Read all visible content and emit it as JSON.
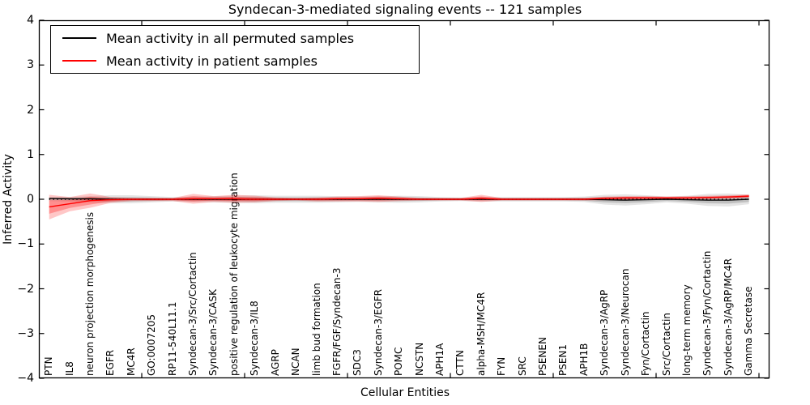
{
  "figure": {
    "title": "Syndecan-3-mediated signaling events -- 121 samples",
    "xlabel": "Cellular Entities",
    "ylabel": "Inferred Activity"
  },
  "legend": {
    "items": [
      {
        "name": "permuted-mean",
        "label": "Mean activity in all permuted samples",
        "color": "#000000"
      },
      {
        "name": "patient-mean",
        "label": "Mean activity in patient samples",
        "color": "#ff0000"
      }
    ]
  },
  "chart_data": {
    "type": "line",
    "title": "Syndecan-3-mediated signaling events -- 121 samples",
    "xlabel": "Cellular Entities",
    "ylabel": "Inferred Activity",
    "ylim": [
      -4,
      4
    ],
    "yticks": [
      4,
      3,
      2,
      1,
      0,
      -1,
      -2,
      -3,
      -4
    ],
    "ytick_labels": [
      "4",
      "3",
      "2",
      "1",
      "0",
      "−1",
      "−2",
      "−3",
      "−4"
    ],
    "grid": false,
    "legend_position": "upper left",
    "zero_line": 0,
    "categories": [
      "PTN",
      "IL8",
      "neuron projection morphogenesis",
      "EGFR",
      "MC4R",
      "GO:0007205",
      "RP11-540L11.1",
      "Syndecan-3/Src/Cortactin",
      "Syndecan-3/CASK",
      "positive regulation of leukocyte migration",
      "Syndecan-3/IL8",
      "AGRP",
      "NCAN",
      "limb bud formation",
      "FGFR/FGF/Syndecan-3",
      "SDC3",
      "Syndecan-3/EGFR",
      "POMC",
      "NCSTN",
      "APH1A",
      "CTTN",
      "alpha-MSH/MC4R",
      "FYN",
      "SRC",
      "PSENEN",
      "PSEN1",
      "APH1B",
      "Syndecan-3/AgRP",
      "Syndecan-3/Neurocan",
      "Fyn/Cortactin",
      "Src/Cortactin",
      "long-term memory",
      "Syndecan-3/Fyn/Cortactin",
      "Syndecan-3/AgRP/MC4R",
      "Gamma Secretase"
    ],
    "series": [
      {
        "name": "Mean activity in all permuted samples",
        "color": "#000000",
        "values": [
          0.02,
          0.01,
          0.01,
          0.0,
          0.0,
          0.0,
          0.0,
          0.0,
          0.0,
          0.0,
          0.0,
          0.0,
          0.0,
          0.0,
          0.0,
          0.0,
          0.0,
          0.0,
          0.0,
          0.0,
          0.0,
          0.0,
          0.0,
          0.0,
          0.0,
          0.0,
          0.0,
          -0.01,
          -0.02,
          -0.01,
          0.0,
          -0.01,
          -0.02,
          -0.02,
          0.0
        ]
      },
      {
        "name": "Mean activity in patient samples",
        "color": "#ff0000",
        "values": [
          -0.17,
          -0.1,
          -0.03,
          -0.01,
          0.0,
          0.0,
          0.0,
          0.01,
          0.01,
          0.01,
          0.0,
          0.0,
          0.0,
          0.0,
          0.01,
          0.01,
          0.02,
          0.01,
          0.0,
          0.0,
          0.0,
          0.02,
          0.0,
          0.0,
          0.0,
          0.0,
          0.0,
          0.02,
          0.03,
          0.03,
          0.03,
          0.03,
          0.04,
          0.05,
          0.07
        ]
      }
    ],
    "bands": [
      {
        "name": "permuted-band",
        "fill": "#000000",
        "alpha": 0.1,
        "hi": [
          0.04,
          0.05,
          0.07,
          0.09,
          0.09,
          0.07,
          0.05,
          0.06,
          0.07,
          0.08,
          0.09,
          0.08,
          0.08,
          0.08,
          0.07,
          0.06,
          0.07,
          0.08,
          0.07,
          0.05,
          0.04,
          0.05,
          0.05,
          0.05,
          0.05,
          0.05,
          0.06,
          0.1,
          0.11,
          0.09,
          0.06,
          0.08,
          0.12,
          0.13,
          0.1
        ],
        "lo": [
          -0.04,
          -0.05,
          -0.07,
          -0.09,
          -0.09,
          -0.07,
          -0.05,
          -0.06,
          -0.07,
          -0.08,
          -0.09,
          -0.08,
          -0.08,
          -0.08,
          -0.07,
          -0.06,
          -0.07,
          -0.08,
          -0.07,
          -0.05,
          -0.04,
          -0.05,
          -0.05,
          -0.05,
          -0.05,
          -0.05,
          -0.06,
          -0.12,
          -0.14,
          -0.11,
          -0.07,
          -0.1,
          -0.15,
          -0.16,
          -0.11
        ]
      },
      {
        "name": "patient-band",
        "fill": "#ff0000",
        "alpha": 0.22,
        "hi": [
          0.1,
          0.05,
          0.13,
          0.05,
          0.03,
          0.03,
          0.03,
          0.12,
          0.07,
          0.1,
          0.08,
          0.04,
          0.03,
          0.04,
          0.06,
          0.07,
          0.09,
          0.06,
          0.03,
          0.03,
          0.03,
          0.1,
          0.03,
          0.03,
          0.03,
          0.03,
          0.03,
          0.06,
          0.07,
          0.07,
          0.06,
          0.07,
          0.08,
          0.09,
          0.11
        ],
        "lo": [
          -0.45,
          -0.27,
          -0.19,
          -0.08,
          -0.04,
          -0.04,
          -0.04,
          -0.1,
          -0.06,
          -0.08,
          -0.07,
          -0.04,
          -0.03,
          -0.05,
          -0.05,
          -0.05,
          -0.06,
          -0.04,
          -0.03,
          -0.03,
          -0.03,
          -0.06,
          -0.03,
          -0.03,
          -0.03,
          -0.03,
          -0.03,
          -0.02,
          -0.02,
          -0.01,
          -0.01,
          -0.01,
          0.0,
          0.01,
          0.03
        ]
      }
    ]
  }
}
